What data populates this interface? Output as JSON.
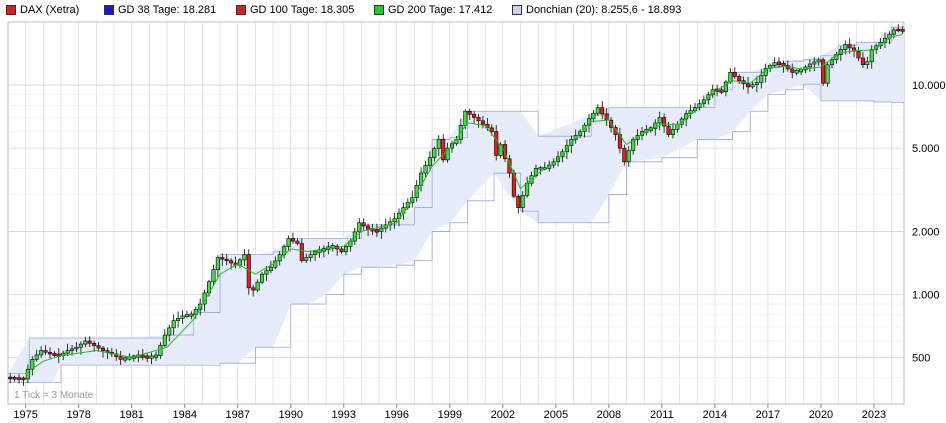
{
  "legend": [
    {
      "label": "DAX (Xetra)",
      "color": "#d62020"
    },
    {
      "label": "GD 38 Tage: 18.281",
      "color": "#1a1acc"
    },
    {
      "label": "GD 100 Tage: 18.305",
      "color": "#d62020"
    },
    {
      "label": "GD 200 Tage: 17.412",
      "color": "#22cc22"
    },
    {
      "label": "Donchian (20): 8.255,6 - 18.893",
      "color": "#c8d4ee"
    }
  ],
  "note": "1 Tick = 3 Monate",
  "colors": {
    "up": "#44dd44",
    "down": "#dd2222",
    "band_fill": "#e6ecfa",
    "band_line": "#98a8cc",
    "ma": "#22bb22",
    "grid": "#d4d4d4"
  },
  "chart_data": {
    "type": "candlestick",
    "yscale": "log",
    "ylim": [
      300,
      20000
    ],
    "xlim": [
      1974.0,
      2024.7
    ],
    "x_ticks": [
      "1975",
      "1978",
      "1981",
      "1984",
      "1987",
      "1990",
      "1993",
      "1996",
      "1999",
      "2002",
      "2005",
      "2008",
      "2011",
      "2014",
      "2017",
      "2020",
      "2023"
    ],
    "y_ticks": [
      "500",
      "1.000",
      "2.000",
      "5.000",
      "10.000"
    ],
    "y_tick_values": [
      500,
      1000,
      2000,
      5000,
      10000
    ],
    "price": [
      [
        1974.0,
        400
      ],
      [
        1975.0,
        395
      ],
      [
        1975.5,
        490
      ],
      [
        1976.0,
        540
      ],
      [
        1976.5,
        520
      ],
      [
        1977.0,
        510
      ],
      [
        1977.5,
        540
      ],
      [
        1978.0,
        560
      ],
      [
        1978.5,
        600
      ],
      [
        1979.0,
        570
      ],
      [
        1979.5,
        540
      ],
      [
        1980.0,
        520
      ],
      [
        1980.5,
        490
      ],
      [
        1981.0,
        500
      ],
      [
        1981.5,
        510
      ],
      [
        1982.0,
        500
      ],
      [
        1982.5,
        510
      ],
      [
        1983.0,
        640
      ],
      [
        1983.5,
        750
      ],
      [
        1984.0,
        790
      ],
      [
        1984.5,
        800
      ],
      [
        1985.0,
        900
      ],
      [
        1985.5,
        1150
      ],
      [
        1986.0,
        1500
      ],
      [
        1986.5,
        1450
      ],
      [
        1987.0,
        1380
      ],
      [
        1987.5,
        1550
      ],
      [
        1987.8,
        1000
      ],
      [
        1988.0,
        1050
      ],
      [
        1988.5,
        1250
      ],
      [
        1989.0,
        1350
      ],
      [
        1989.5,
        1550
      ],
      [
        1990.0,
        1850
      ],
      [
        1990.5,
        1750
      ],
      [
        1990.8,
        1400
      ],
      [
        1991.0,
        1500
      ],
      [
        1991.5,
        1600
      ],
      [
        1992.0,
        1650
      ],
      [
        1992.5,
        1700
      ],
      [
        1993.0,
        1600
      ],
      [
        1993.5,
        1800
      ],
      [
        1994.0,
        2200
      ],
      [
        1994.5,
        2050
      ],
      [
        1995.0,
        2000
      ],
      [
        1995.5,
        2150
      ],
      [
        1996.0,
        2300
      ],
      [
        1996.5,
        2600
      ],
      [
        1997.0,
        2900
      ],
      [
        1997.5,
        3800
      ],
      [
        1998.0,
        4500
      ],
      [
        1998.5,
        5500
      ],
      [
        1998.8,
        4200
      ],
      [
        1999.0,
        5000
      ],
      [
        1999.5,
        5500
      ],
      [
        2000.0,
        7500
      ],
      [
        2000.5,
        7000
      ],
      [
        2001.0,
        6500
      ],
      [
        2001.5,
        6000
      ],
      [
        2001.7,
        4500
      ],
      [
        2002.0,
        5200
      ],
      [
        2002.5,
        3800
      ],
      [
        2002.8,
        2800
      ],
      [
        2003.0,
        2600
      ],
      [
        2003.5,
        3400
      ],
      [
        2004.0,
        4000
      ],
      [
        2004.5,
        4000
      ],
      [
        2005.0,
        4300
      ],
      [
        2005.5,
        4800
      ],
      [
        2006.0,
        5500
      ],
      [
        2006.5,
        6000
      ],
      [
        2007.0,
        6900
      ],
      [
        2007.5,
        7800
      ],
      [
        2008.0,
        6800
      ],
      [
        2008.5,
        5800
      ],
      [
        2009.0,
        4300
      ],
      [
        2009.5,
        5500
      ],
      [
        2010.0,
        6000
      ],
      [
        2010.5,
        6200
      ],
      [
        2011.0,
        7000
      ],
      [
        2011.5,
        5800
      ],
      [
        2012.0,
        6500
      ],
      [
        2012.5,
        7300
      ],
      [
        2013.0,
        7800
      ],
      [
        2013.5,
        8500
      ],
      [
        2014.0,
        9500
      ],
      [
        2014.5,
        9300
      ],
      [
        2015.0,
        11500
      ],
      [
        2015.5,
        10500
      ],
      [
        2016.0,
        9800
      ],
      [
        2016.5,
        10300
      ],
      [
        2017.0,
        12000
      ],
      [
        2017.5,
        12800
      ],
      [
        2018.0,
        12400
      ],
      [
        2018.5,
        11500
      ],
      [
        2019.0,
        11800
      ],
      [
        2019.5,
        12600
      ],
      [
        2020.0,
        13200
      ],
      [
        2020.2,
        9800
      ],
      [
        2020.5,
        12500
      ],
      [
        2021.0,
        14000
      ],
      [
        2021.5,
        15600
      ],
      [
        2022.0,
        14500
      ],
      [
        2022.5,
        12500
      ],
      [
        2022.8,
        13000
      ],
      [
        2023.0,
        14800
      ],
      [
        2023.5,
        16000
      ],
      [
        2024.0,
        17500
      ],
      [
        2024.3,
        18500
      ],
      [
        2024.6,
        18200
      ]
    ],
    "donchian": [
      [
        1974.0,
        380,
        420
      ],
      [
        1975.2,
        380,
        620
      ],
      [
        1976.5,
        380,
        620
      ],
      [
        1977.0,
        460,
        620
      ],
      [
        1979.0,
        460,
        620
      ],
      [
        1980.5,
        460,
        620
      ],
      [
        1983.0,
        460,
        640
      ],
      [
        1984.5,
        460,
        820
      ],
      [
        1986.0,
        470,
        1550
      ],
      [
        1987.0,
        470,
        1550
      ],
      [
        1988.0,
        560,
        1550
      ],
      [
        1989.0,
        560,
        1600
      ],
      [
        1990.0,
        900,
        1850
      ],
      [
        1991.0,
        900,
        1850
      ],
      [
        1992.0,
        1000,
        1850
      ],
      [
        1993.0,
        1250,
        1850
      ],
      [
        1994.0,
        1350,
        2150
      ],
      [
        1996.0,
        1380,
        2150
      ],
      [
        1997.0,
        1450,
        2600
      ],
      [
        1998.0,
        2000,
        5500
      ],
      [
        1999.0,
        2200,
        5600
      ],
      [
        2000.0,
        2800,
        7500
      ],
      [
        2001.5,
        3800,
        7500
      ],
      [
        2003.0,
        2500,
        7500
      ],
      [
        2004.0,
        2200,
        5700
      ],
      [
        2007.0,
        2200,
        7200
      ],
      [
        2008.0,
        3000,
        7800
      ],
      [
        2009.0,
        4300,
        7800
      ],
      [
        2011.0,
        4500,
        7800
      ],
      [
        2013.0,
        5500,
        7800
      ],
      [
        2014.0,
        5500,
        9500
      ],
      [
        2015.0,
        6000,
        11500
      ],
      [
        2016.0,
        7500,
        11500
      ],
      [
        2017.0,
        9000,
        12300
      ],
      [
        2018.0,
        9500,
        13000
      ],
      [
        2019.0,
        10100,
        13200
      ],
      [
        2020.0,
        8400,
        13800
      ],
      [
        2021.0,
        8400,
        15500
      ],
      [
        2022.0,
        8400,
        16000
      ],
      [
        2023.0,
        8300,
        16000
      ],
      [
        2024.0,
        8255.6,
        18893
      ],
      [
        2024.7,
        8255.6,
        18893
      ]
    ],
    "moving_average": [
      [
        1975.0,
        420
      ],
      [
        1976.0,
        480
      ],
      [
        1977.0,
        510
      ],
      [
        1979.0,
        540
      ],
      [
        1981.0,
        500
      ],
      [
        1983.0,
        560
      ],
      [
        1984.5,
        760
      ],
      [
        1986.0,
        1250
      ],
      [
        1987.0,
        1400
      ],
      [
        1988.0,
        1250
      ],
      [
        1989.0,
        1400
      ],
      [
        1990.0,
        1650
      ],
      [
        1991.0,
        1600
      ],
      [
        1992.0,
        1650
      ],
      [
        1993.0,
        1700
      ],
      [
        1994.0,
        2000
      ],
      [
        1996.0,
        2200
      ],
      [
        1997.0,
        2900
      ],
      [
        1998.0,
        4100
      ],
      [
        1999.0,
        5000
      ],
      [
        2000.0,
        6600
      ],
      [
        2001.0,
        6400
      ],
      [
        2002.0,
        5000
      ],
      [
        2003.0,
        3200
      ],
      [
        2004.0,
        3800
      ],
      [
        2005.0,
        4300
      ],
      [
        2006.0,
        5400
      ],
      [
        2007.0,
        6700
      ],
      [
        2008.0,
        6800
      ],
      [
        2009.0,
        5200
      ],
      [
        2010.0,
        5900
      ],
      [
        2011.0,
        6500
      ],
      [
        2012.0,
        6500
      ],
      [
        2013.0,
        7700
      ],
      [
        2014.0,
        9300
      ],
      [
        2015.0,
        10500
      ],
      [
        2016.0,
        10200
      ],
      [
        2017.0,
        12000
      ],
      [
        2018.0,
        12300
      ],
      [
        2019.0,
        11900
      ],
      [
        2020.0,
        12200
      ],
      [
        2021.0,
        14200
      ],
      [
        2022.0,
        14600
      ],
      [
        2023.0,
        14700
      ],
      [
        2024.0,
        17000
      ],
      [
        2024.6,
        17412
      ]
    ]
  }
}
